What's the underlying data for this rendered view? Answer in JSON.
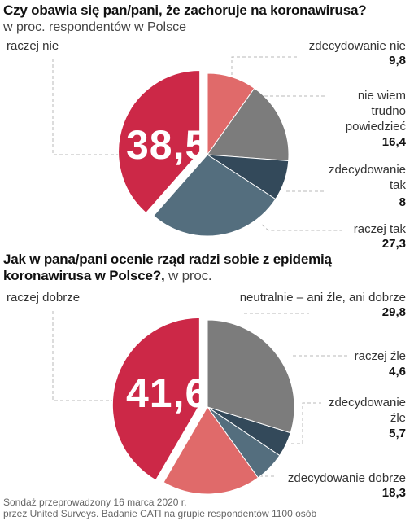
{
  "chart_data": [
    {
      "type": "pie",
      "title": "Czy obawia się pan/pani, że zachoruje na koronawirusa?",
      "subtitle": "w proc. respondentów w Polsce",
      "slices": [
        {
          "label": "zdecydowanie nie",
          "value": 9.8,
          "value_text": "9,8",
          "color": "#e06a6a"
        },
        {
          "label": "nie wiem trudno powiedzieć",
          "value": 16.4,
          "value_text": "16,4",
          "color": "#7c7c7c"
        },
        {
          "label": "zdecydowanie tak",
          "value": 8,
          "value_text": "8",
          "color": "#33495a"
        },
        {
          "label": "raczej tak",
          "value": 27.3,
          "value_text": "27,3",
          "color": "#546e7e"
        },
        {
          "label": "raczej nie",
          "value": 38.5,
          "value_text": "38,5",
          "color": "#cc2847"
        }
      ],
      "center_label": "38,5"
    },
    {
      "type": "pie",
      "title": "Jak w pana/pani ocenie rząd radzi sobie z epidemią koronawirusa w Polsce?,",
      "subtitle": "w proc.",
      "slices": [
        {
          "label": "neutralnie – ani źle, ani dobrze",
          "value": 29.8,
          "value_text": "29,8",
          "color": "#7c7c7c"
        },
        {
          "label": "raczej źle",
          "value": 4.6,
          "value_text": "4,6",
          "color": "#33495a"
        },
        {
          "label": "zdecydowanie źle",
          "value": 5.7,
          "value_text": "5,7",
          "color": "#546e7e"
        },
        {
          "label": "zdecydowanie dobrze",
          "value": 18.3,
          "value_text": "18,3",
          "color": "#e06a6a"
        },
        {
          "label": "raczej dobrze",
          "value": 41.6,
          "value_text": "41,6",
          "color": "#cc2847"
        }
      ],
      "center_label": "41,6"
    }
  ],
  "chart1": {
    "title": "Czy obawia się pan/pani, że zachoruje na koronawirusa?",
    "subtitle": "w proc. respondentów w Polsce",
    "big": "38,5",
    "labels": {
      "raczej_nie": "raczej nie",
      "zdec_nie": "zdecydowanie nie",
      "zdec_nie_val": "9,8",
      "nie_wiem_1": "nie wiem",
      "nie_wiem_2": "trudno",
      "nie_wiem_3": "powiedzieć",
      "nie_wiem_val": "16,4",
      "zdec_tak_1": "zdecydowanie",
      "zdec_tak_2": "tak",
      "zdec_tak_val": "8",
      "raczej_tak": "raczej tak",
      "raczej_tak_val": "27,3"
    }
  },
  "chart2": {
    "title_line1": "Jak w pana/pani ocenie rząd radzi sobie z epidemią",
    "title_line2": "koronawirusa w Polsce?,",
    "title_suffix": " w proc.",
    "big": "41,6",
    "labels": {
      "raczej_dobrze": "raczej dobrze",
      "neutral": "neutralnie – ani źle, ani dobrze",
      "neutral_val": "29,8",
      "raczej_zle": "raczej źle",
      "raczej_zle_val": "4,6",
      "zdec_zle_1": "zdecydowanie",
      "zdec_zle_2": "źle",
      "zdec_zle_val": "5,7",
      "zdec_dobrze": "zdecydowanie dobrze",
      "zdec_dobrze_val": "18,3"
    }
  },
  "footer": {
    "line1": "Sondaż przeprowadzony 16 marca 2020 r.",
    "line2": "przez United Surveys. Badanie CATI na grupie respondentów 1100 osób"
  }
}
